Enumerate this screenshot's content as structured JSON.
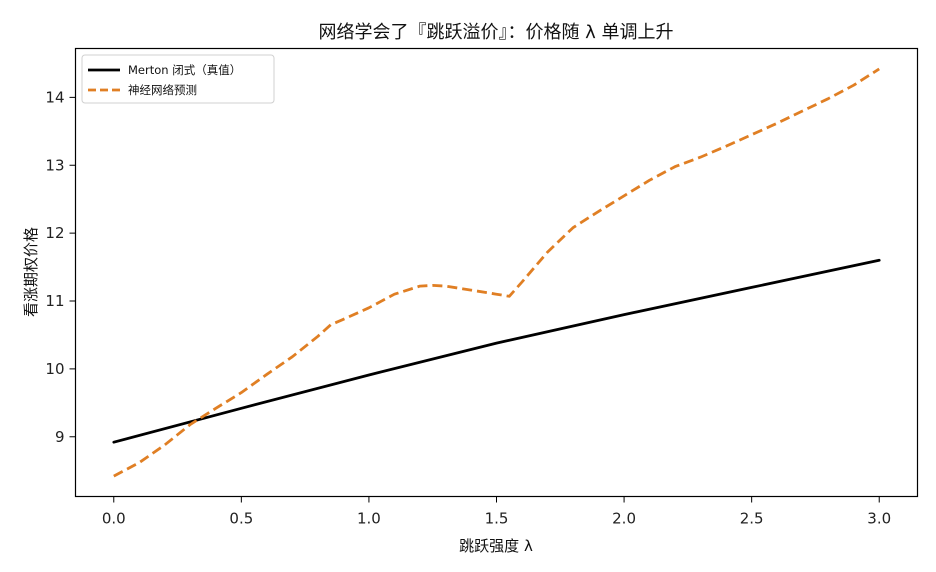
{
  "chart_data": {
    "type": "line",
    "title": "网络学会了『跳跃溢价』：价格随 λ 单调上升",
    "xlabel": "跳跃强度 λ",
    "ylabel": "看涨期权价格",
    "xlim": [
      -0.15,
      3.15
    ],
    "ylim": [
      8.12,
      14.72
    ],
    "xticks": [
      0.0,
      0.5,
      1.0,
      1.5,
      2.0,
      2.5,
      3.0
    ],
    "xtick_labels": [
      "0.0",
      "0.5",
      "1.0",
      "1.5",
      "2.0",
      "2.5",
      "3.0"
    ],
    "yticks": [
      9,
      10,
      11,
      12,
      13,
      14
    ],
    "ytick_labels": [
      "9",
      "10",
      "11",
      "12",
      "13",
      "14"
    ],
    "grid": false,
    "legend_position": "top-left",
    "series": [
      {
        "name": "Merton 闭式（真值）",
        "color": "#000000",
        "style": "solid",
        "x": [
          0.0,
          0.5,
          1.0,
          1.5,
          2.0,
          2.5,
          3.0
        ],
        "y": [
          8.92,
          9.42,
          9.91,
          10.38,
          10.8,
          11.2,
          11.6
        ]
      },
      {
        "name": "神经网络预测",
        "color": "#e07f24",
        "style": "dashed",
        "x": [
          0.0,
          0.1,
          0.2,
          0.3,
          0.4,
          0.5,
          0.6,
          0.7,
          0.8,
          0.85,
          0.9,
          1.0,
          1.1,
          1.2,
          1.25,
          1.3,
          1.4,
          1.5,
          1.55,
          1.6,
          1.7,
          1.8,
          1.9,
          2.0,
          2.1,
          2.2,
          2.3,
          2.4,
          2.5,
          2.6,
          2.7,
          2.8,
          2.9,
          3.0
        ],
        "y": [
          8.42,
          8.62,
          8.88,
          9.18,
          9.42,
          9.65,
          9.92,
          10.18,
          10.48,
          10.65,
          10.73,
          10.9,
          11.1,
          11.22,
          11.23,
          11.22,
          11.16,
          11.1,
          11.07,
          11.28,
          11.72,
          12.08,
          12.32,
          12.55,
          12.78,
          12.98,
          13.12,
          13.28,
          13.45,
          13.62,
          13.8,
          13.98,
          14.18,
          14.42
        ]
      }
    ]
  }
}
